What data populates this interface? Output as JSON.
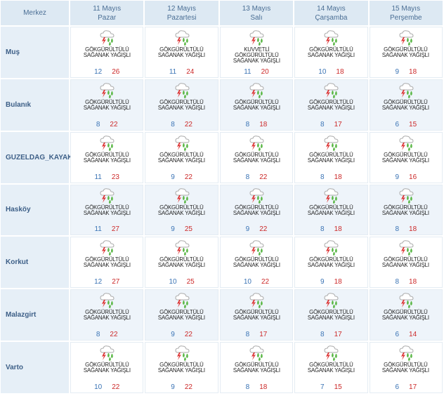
{
  "header": {
    "station": "Merkez",
    "days": [
      {
        "date": "11 Mayıs",
        "weekday": "Pazar"
      },
      {
        "date": "12 Mayıs",
        "weekday": "Pazartesi"
      },
      {
        "date": "13 Mayıs",
        "weekday": "Salı"
      },
      {
        "date": "14 Mayıs",
        "weekday": "Çarşamba"
      },
      {
        "date": "15 Mayıs",
        "weekday": "Perşembe"
      }
    ]
  },
  "rows": [
    {
      "station": "Muş",
      "cells": [
        {
          "condition": [
            "GÖKGÜRÜLTÜLÜ",
            "SAĞANAK YAĞIŞLI"
          ],
          "min": 12,
          "max": 26
        },
        {
          "condition": [
            "GÖKGÜRÜLTÜLÜ",
            "SAĞANAK YAĞIŞLI"
          ],
          "min": 11,
          "max": 24
        },
        {
          "condition": [
            "KUVVETLİ",
            "GÖKGÜRÜLTÜLÜ",
            "SAĞANAK YAĞIŞLI"
          ],
          "min": 11,
          "max": 20
        },
        {
          "condition": [
            "GÖKGÜRÜLTÜLÜ",
            "SAĞANAK YAĞIŞLI"
          ],
          "min": 10,
          "max": 18
        },
        {
          "condition": [
            "GÖKGÜRÜLTÜLÜ",
            "SAĞANAK YAĞIŞLI"
          ],
          "min": 9,
          "max": 18
        }
      ]
    },
    {
      "station": "Bulanık",
      "cells": [
        {
          "condition": [
            "GÖKGÜRÜLTÜLÜ",
            "SAĞANAK YAĞIŞLI"
          ],
          "min": 8,
          "max": 22
        },
        {
          "condition": [
            "GÖKGÜRÜLTÜLÜ",
            "SAĞANAK YAĞIŞLI"
          ],
          "min": 8,
          "max": 22
        },
        {
          "condition": [
            "GÖKGÜRÜLTÜLÜ",
            "SAĞANAK YAĞIŞLI"
          ],
          "min": 8,
          "max": 18
        },
        {
          "condition": [
            "GÖKGÜRÜLTÜLÜ",
            "SAĞANAK YAĞIŞLI"
          ],
          "min": 8,
          "max": 17
        },
        {
          "condition": [
            "GÖKGÜRÜLTÜLÜ",
            "SAĞANAK YAĞIŞLI"
          ],
          "min": 6,
          "max": 15
        }
      ]
    },
    {
      "station": "GUZELDAG_KAYAK",
      "cells": [
        {
          "condition": [
            "GÖKGÜRÜLTÜLÜ",
            "SAĞANAK YAĞIŞLI"
          ],
          "min": 11,
          "max": 23
        },
        {
          "condition": [
            "GÖKGÜRÜLTÜLÜ",
            "SAĞANAK YAĞIŞLI"
          ],
          "min": 9,
          "max": 22
        },
        {
          "condition": [
            "GÖKGÜRÜLTÜLÜ",
            "SAĞANAK YAĞIŞLI"
          ],
          "min": 8,
          "max": 22
        },
        {
          "condition": [
            "GÖKGÜRÜLTÜLÜ",
            "SAĞANAK YAĞIŞLI"
          ],
          "min": 8,
          "max": 18
        },
        {
          "condition": [
            "GÖKGÜRÜLTÜLÜ",
            "SAĞANAK YAĞIŞLI"
          ],
          "min": 9,
          "max": 16
        }
      ]
    },
    {
      "station": "Hasköy",
      "cells": [
        {
          "condition": [
            "GÖKGÜRÜLTÜLÜ",
            "SAĞANAK YAĞIŞLI"
          ],
          "min": 11,
          "max": 27
        },
        {
          "condition": [
            "GÖKGÜRÜLTÜLÜ",
            "SAĞANAK YAĞIŞLI"
          ],
          "min": 9,
          "max": 25
        },
        {
          "condition": [
            "GÖKGÜRÜLTÜLÜ",
            "SAĞANAK YAĞIŞLI"
          ],
          "min": 9,
          "max": 22
        },
        {
          "condition": [
            "GÖKGÜRÜLTÜLÜ",
            "SAĞANAK YAĞIŞLI"
          ],
          "min": 8,
          "max": 18
        },
        {
          "condition": [
            "GÖKGÜRÜLTÜLÜ",
            "SAĞANAK YAĞIŞLI"
          ],
          "min": 8,
          "max": 18
        }
      ]
    },
    {
      "station": "Korkut",
      "cells": [
        {
          "condition": [
            "GÖKGÜRÜLTÜLÜ",
            "SAĞANAK YAĞIŞLI"
          ],
          "min": 12,
          "max": 27
        },
        {
          "condition": [
            "GÖKGÜRÜLTÜLÜ",
            "SAĞANAK YAĞIŞLI"
          ],
          "min": 10,
          "max": 25
        },
        {
          "condition": [
            "GÖKGÜRÜLTÜLÜ",
            "SAĞANAK YAĞIŞLI"
          ],
          "min": 10,
          "max": 22
        },
        {
          "condition": [
            "GÖKGÜRÜLTÜLÜ",
            "SAĞANAK YAĞIŞLI"
          ],
          "min": 9,
          "max": 18
        },
        {
          "condition": [
            "GÖKGÜRÜLTÜLÜ",
            "SAĞANAK YAĞIŞLI"
          ],
          "min": 8,
          "max": 18
        }
      ]
    },
    {
      "station": "Malazgirt",
      "cells": [
        {
          "condition": [
            "GÖKGÜRÜLTÜLÜ",
            "SAĞANAK YAĞIŞLI"
          ],
          "min": 8,
          "max": 22
        },
        {
          "condition": [
            "GÖKGÜRÜLTÜLÜ",
            "SAĞANAK YAĞIŞLI"
          ],
          "min": 9,
          "max": 22
        },
        {
          "condition": [
            "GÖKGÜRÜLTÜLÜ",
            "SAĞANAK YAĞIŞLI"
          ],
          "min": 8,
          "max": 17
        },
        {
          "condition": [
            "GÖKGÜRÜLTÜLÜ",
            "SAĞANAK YAĞIŞLI"
          ],
          "min": 8,
          "max": 17
        },
        {
          "condition": [
            "GÖKGÜRÜLTÜLÜ",
            "SAĞANAK YAĞIŞLI"
          ],
          "min": 6,
          "max": 14
        }
      ]
    },
    {
      "station": "Varto",
      "cells": [
        {
          "condition": [
            "GÖKGÜRÜLTÜLÜ",
            "SAĞANAK YAĞIŞLI"
          ],
          "min": 10,
          "max": 22
        },
        {
          "condition": [
            "GÖKGÜRÜLTÜLÜ",
            "SAĞANAK YAĞIŞLI"
          ],
          "min": 9,
          "max": 22
        },
        {
          "condition": [
            "GÖKGÜRÜLTÜLÜ",
            "SAĞANAK YAĞIŞLI"
          ],
          "min": 8,
          "max": 18
        },
        {
          "condition": [
            "GÖKGÜRÜLTÜLÜ",
            "SAĞANAK YAĞIŞLI"
          ],
          "min": 7,
          "max": 15
        },
        {
          "condition": [
            "GÖKGÜRÜLTÜLÜ",
            "SAĞANAK YAĞIŞLI"
          ],
          "min": 6,
          "max": 17
        }
      ]
    }
  ]
}
